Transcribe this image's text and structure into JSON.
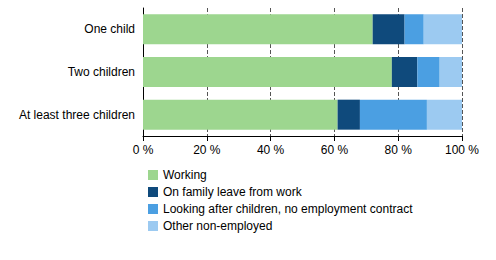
{
  "chart_data": {
    "type": "bar",
    "orientation": "horizontal",
    "stacked": true,
    "grid": true,
    "legend": "bottom",
    "categories": [
      "One child",
      "Two children",
      "At least three children"
    ],
    "series": [
      {
        "name": "Working",
        "color": "#9dd68f",
        "values": [
          72,
          78,
          61
        ]
      },
      {
        "name": "On family leave from work",
        "color": "#0f4a7c",
        "values": [
          10,
          8,
          7
        ]
      },
      {
        "name": "Looking after children, no employment contract",
        "color": "#4b9fe2",
        "values": [
          6,
          7,
          21
        ]
      },
      {
        "name": "Other non-employed",
        "color": "#9ccaf1",
        "values": [
          12,
          7,
          11
        ]
      }
    ],
    "xlim": [
      0,
      100
    ],
    "xticks": [
      {
        "value": 0,
        "label": "0 %"
      },
      {
        "value": 20,
        "label": "20 %"
      },
      {
        "value": 40,
        "label": "40 %"
      },
      {
        "value": 60,
        "label": "60 %"
      },
      {
        "value": 80,
        "label": "80 %"
      },
      {
        "value": 100,
        "label": "100 %"
      }
    ]
  }
}
